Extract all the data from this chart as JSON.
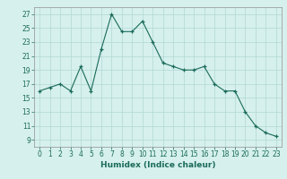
{
  "x": [
    0,
    1,
    2,
    3,
    4,
    5,
    6,
    7,
    8,
    9,
    10,
    11,
    12,
    13,
    14,
    15,
    16,
    17,
    18,
    19,
    20,
    21,
    22,
    23
  ],
  "y": [
    16,
    16.5,
    17,
    16,
    19.5,
    16,
    22,
    27,
    24.5,
    24.5,
    26,
    23,
    20,
    19.5,
    19,
    19,
    19.5,
    17,
    16,
    16,
    13,
    11,
    10,
    9.5
  ],
  "line_color": "#1a6b5a",
  "marker_color": "#1a6b5a",
  "bg_color": "#d6f0ed",
  "grid_color": "#b0d8d4",
  "xlabel": "Humidex (Indice chaleur)",
  "xlim": [
    -0.5,
    23.5
  ],
  "ylim": [
    8,
    28
  ],
  "yticks": [
    9,
    11,
    13,
    15,
    17,
    19,
    21,
    23,
    25,
    27
  ],
  "xticks": [
    0,
    1,
    2,
    3,
    4,
    5,
    6,
    7,
    8,
    9,
    10,
    11,
    12,
    13,
    14,
    15,
    16,
    17,
    18,
    19,
    20,
    21,
    22,
    23
  ],
  "tick_fontsize": 5.5,
  "label_fontsize": 6.5
}
